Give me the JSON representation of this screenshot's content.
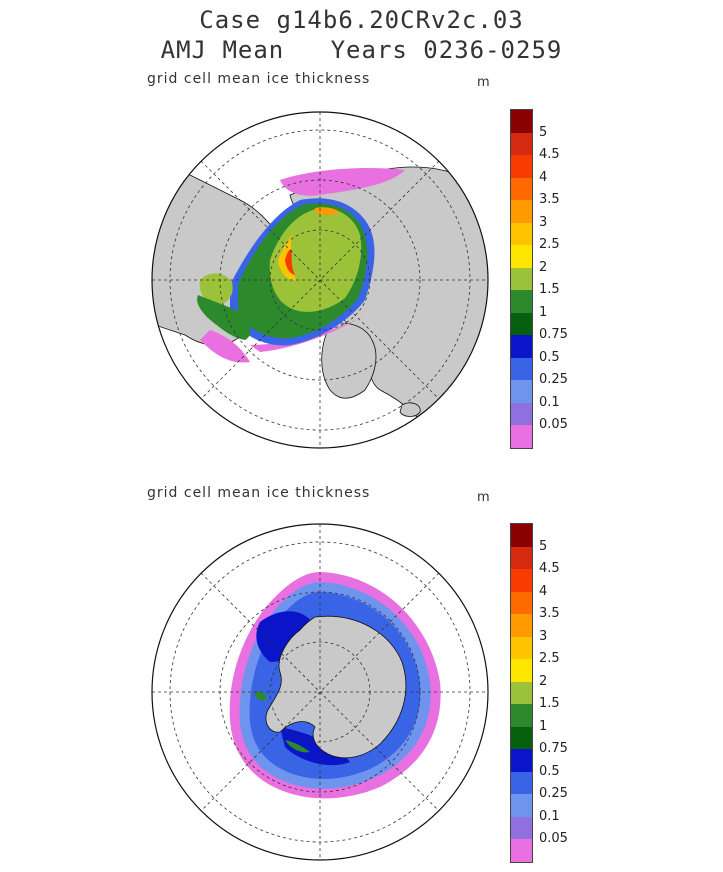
{
  "title": {
    "line1": "Case g14b6.20CRv2c.03",
    "line2": "AMJ Mean   Years 0236-0259"
  },
  "panels": [
    {
      "name": "arctic",
      "label": "grid cell mean ice thickness",
      "unit": "m"
    },
    {
      "name": "antarctic",
      "label": "grid cell mean ice thickness",
      "unit": "m"
    }
  ],
  "colorbar": {
    "levels": [
      "5",
      "4.5",
      "4",
      "3.5",
      "3",
      "2.5",
      "2",
      "1.5",
      "1",
      "0.75",
      "0.5",
      "0.25",
      "0.1",
      "0.05"
    ],
    "colors": [
      "#8b0000",
      "#d42a10",
      "#f83c00",
      "#ff6a00",
      "#ff9a00",
      "#ffc400",
      "#ffe600",
      "#9cc23a",
      "#2c8a2c",
      "#076010",
      "#0a14c8",
      "#3a64e6",
      "#6f94ee",
      "#9070de",
      "#e870e0"
    ]
  },
  "palette": {
    "land": "#c9c9c9",
    "ocean": "#ffffff",
    "grid": "#333333"
  }
}
